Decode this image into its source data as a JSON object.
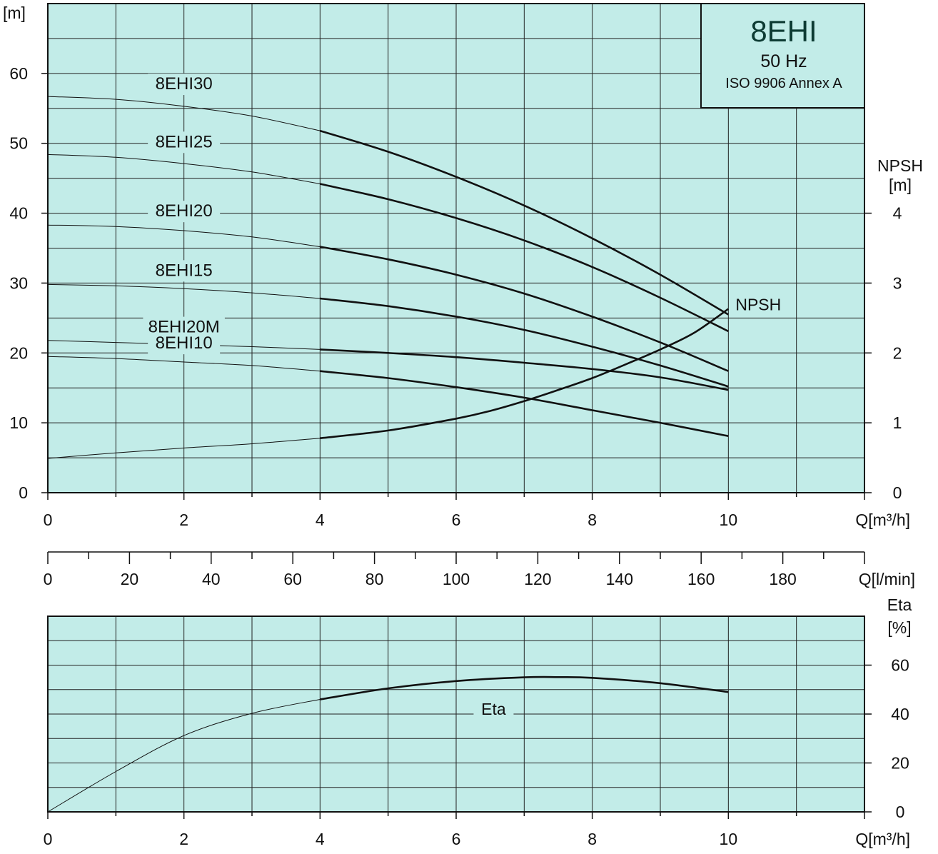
{
  "chart_data": [
    {
      "type": "line",
      "title": "8EHI",
      "subtitle": "50 Hz",
      "standard": "ISO 9906 Annex A",
      "ylabel": "[m]",
      "y2label_line1": "NPSH",
      "y2label_line2": "[m]",
      "xlabel": "Q[m³/h]",
      "xlim": [
        0,
        12
      ],
      "ylim": [
        0,
        70
      ],
      "y2lim": [
        0,
        7
      ],
      "x_ticks": [
        0,
        2,
        4,
        6,
        8,
        10
      ],
      "y_ticks": [
        0,
        10,
        20,
        30,
        40,
        50,
        60
      ],
      "y2_ticks": [
        0,
        1,
        2,
        3,
        4
      ],
      "grid": true,
      "operating_range": [
        4,
        10
      ],
      "series": [
        {
          "name": "8EHI30",
          "x": [
            0,
            1,
            2,
            3,
            4,
            5,
            6,
            7,
            8,
            9,
            10
          ],
          "y": [
            56.7,
            56.3,
            55.3,
            53.9,
            51.8,
            48.8,
            45.2,
            41.1,
            36.4,
            31.2,
            25.5
          ]
        },
        {
          "name": "8EHI25",
          "x": [
            0,
            1,
            2,
            3,
            4,
            5,
            6,
            7,
            8,
            9,
            10
          ],
          "y": [
            48.4,
            48.0,
            47.1,
            45.9,
            44.2,
            42.0,
            39.3,
            36.1,
            32.3,
            27.9,
            23.1
          ]
        },
        {
          "name": "8EHI20",
          "x": [
            0,
            1,
            2,
            3,
            4,
            5,
            6,
            7,
            8,
            9,
            10
          ],
          "y": [
            38.3,
            38.1,
            37.5,
            36.6,
            35.2,
            33.4,
            31.2,
            28.5,
            25.2,
            21.5,
            17.4
          ]
        },
        {
          "name": "8EHI15",
          "x": [
            0,
            1,
            2,
            3,
            4,
            5,
            6,
            7,
            8,
            9,
            10
          ],
          "y": [
            29.8,
            29.6,
            29.2,
            28.6,
            27.8,
            26.7,
            25.2,
            23.3,
            20.9,
            18.2,
            15.2
          ]
        },
        {
          "name": "8EHI20M",
          "x": [
            0,
            1,
            2,
            3,
            4,
            5,
            6,
            7,
            8,
            9,
            10
          ],
          "y": [
            21.8,
            21.5,
            21.2,
            20.9,
            20.5,
            20.0,
            19.4,
            18.6,
            17.7,
            16.5,
            14.7
          ]
        },
        {
          "name": "8EHI10",
          "x": [
            0,
            1,
            2,
            3,
            4,
            5,
            6,
            7,
            8,
            9,
            10
          ],
          "y": [
            19.5,
            19.2,
            18.7,
            18.2,
            17.4,
            16.4,
            15.1,
            13.6,
            11.8,
            10.0,
            8.1
          ]
        }
      ],
      "npsh_series": {
        "name": "NPSH",
        "x": [
          0,
          1,
          2,
          3,
          4,
          5,
          6,
          6.5,
          7,
          7.5,
          8,
          8.5,
          9,
          9.5,
          10
        ],
        "y": [
          0.49,
          0.57,
          0.64,
          0.7,
          0.78,
          0.89,
          1.06,
          1.17,
          1.31,
          1.47,
          1.64,
          1.84,
          2.05,
          2.29,
          2.63
        ]
      }
    },
    {
      "type": "axis",
      "xlabel": "Q[l/min]",
      "xlim": [
        0,
        200
      ],
      "x_ticks": [
        0,
        20,
        40,
        60,
        80,
        100,
        120,
        140,
        160,
        180
      ]
    },
    {
      "type": "line",
      "y2label_line1": "Eta",
      "y2label_line2": "[%]",
      "xlabel": "Q[m³/h]",
      "xlim": [
        0,
        12
      ],
      "ylim": [
        0,
        80
      ],
      "y2_ticks": [
        0,
        20,
        40,
        60
      ],
      "x_ticks": [
        0,
        2,
        4,
        6,
        8,
        10
      ],
      "grid": true,
      "operating_range": [
        4,
        10
      ],
      "series": [
        {
          "name": "Eta",
          "x": [
            0,
            1,
            2,
            3,
            4,
            5,
            6,
            7,
            7.5,
            8,
            9,
            10
          ],
          "y": [
            0,
            16.5,
            31.2,
            40.3,
            46.0,
            50.5,
            53.5,
            55.0,
            55.1,
            54.8,
            52.6,
            49.0
          ]
        }
      ]
    }
  ]
}
